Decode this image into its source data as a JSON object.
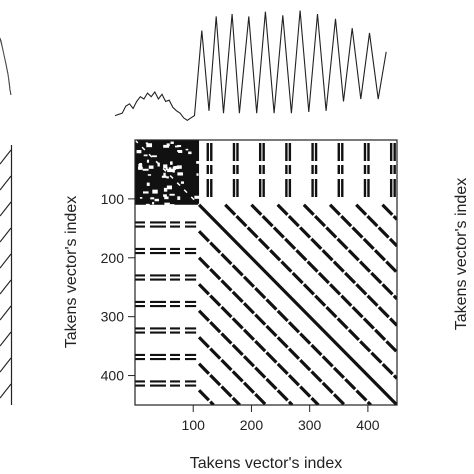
{
  "chart_data": {
    "type": "heatmap",
    "subtype": "recurrence-plot",
    "title": "",
    "xlabel": "Takens vector's index",
    "ylabel_left": "Takens vector's index",
    "ylabel_right": "Takens vector's index",
    "xlim": [
      0,
      450
    ],
    "ylim": [
      450,
      0
    ],
    "xticks": [
      100,
      200,
      300,
      400
    ],
    "yticks": [
      100,
      200,
      300,
      400
    ],
    "grid": false,
    "legend": "none",
    "recurrence_color": "#111111",
    "background_color": "#ffffff",
    "regions": {
      "initial_irregular_block": [
        0,
        110
      ],
      "oscillation_period": 45
    },
    "top_series": {
      "description_values": [
        [
          0,
          0.08
        ],
        [
          10,
          0.1
        ],
        [
          15,
          0.16
        ],
        [
          20,
          0.18
        ],
        [
          25,
          0.14
        ],
        [
          30,
          0.2
        ],
        [
          35,
          0.24
        ],
        [
          40,
          0.22
        ],
        [
          45,
          0.27
        ],
        [
          50,
          0.24
        ],
        [
          55,
          0.28
        ],
        [
          60,
          0.22
        ],
        [
          65,
          0.26
        ],
        [
          70,
          0.2
        ],
        [
          75,
          0.21
        ],
        [
          80,
          0.15
        ],
        [
          85,
          0.12
        ],
        [
          90,
          0.1
        ],
        [
          95,
          0.06
        ],
        [
          100,
          0.04
        ],
        [
          105,
          0.06
        ],
        [
          110,
          0.08
        ],
        [
          120,
          0.8
        ],
        [
          130,
          0.12
        ],
        [
          140,
          0.92
        ],
        [
          150,
          0.1
        ],
        [
          162,
          0.94
        ],
        [
          172,
          0.1
        ],
        [
          185,
          0.92
        ],
        [
          196,
          0.1
        ],
        [
          208,
          0.96
        ],
        [
          220,
          0.1
        ],
        [
          232,
          0.93
        ],
        [
          244,
          0.1
        ],
        [
          256,
          0.97
        ],
        [
          268,
          0.11
        ],
        [
          280,
          0.94
        ],
        [
          292,
          0.12
        ],
        [
          305,
          0.9
        ],
        [
          316,
          0.2
        ],
        [
          328,
          0.82
        ],
        [
          340,
          0.22
        ],
        [
          352,
          0.78
        ],
        [
          364,
          0.22
        ],
        [
          375,
          0.62
        ]
      ]
    },
    "left_series": {
      "pattern": "periodic-diagonal-hatch",
      "period": 45
    }
  }
}
